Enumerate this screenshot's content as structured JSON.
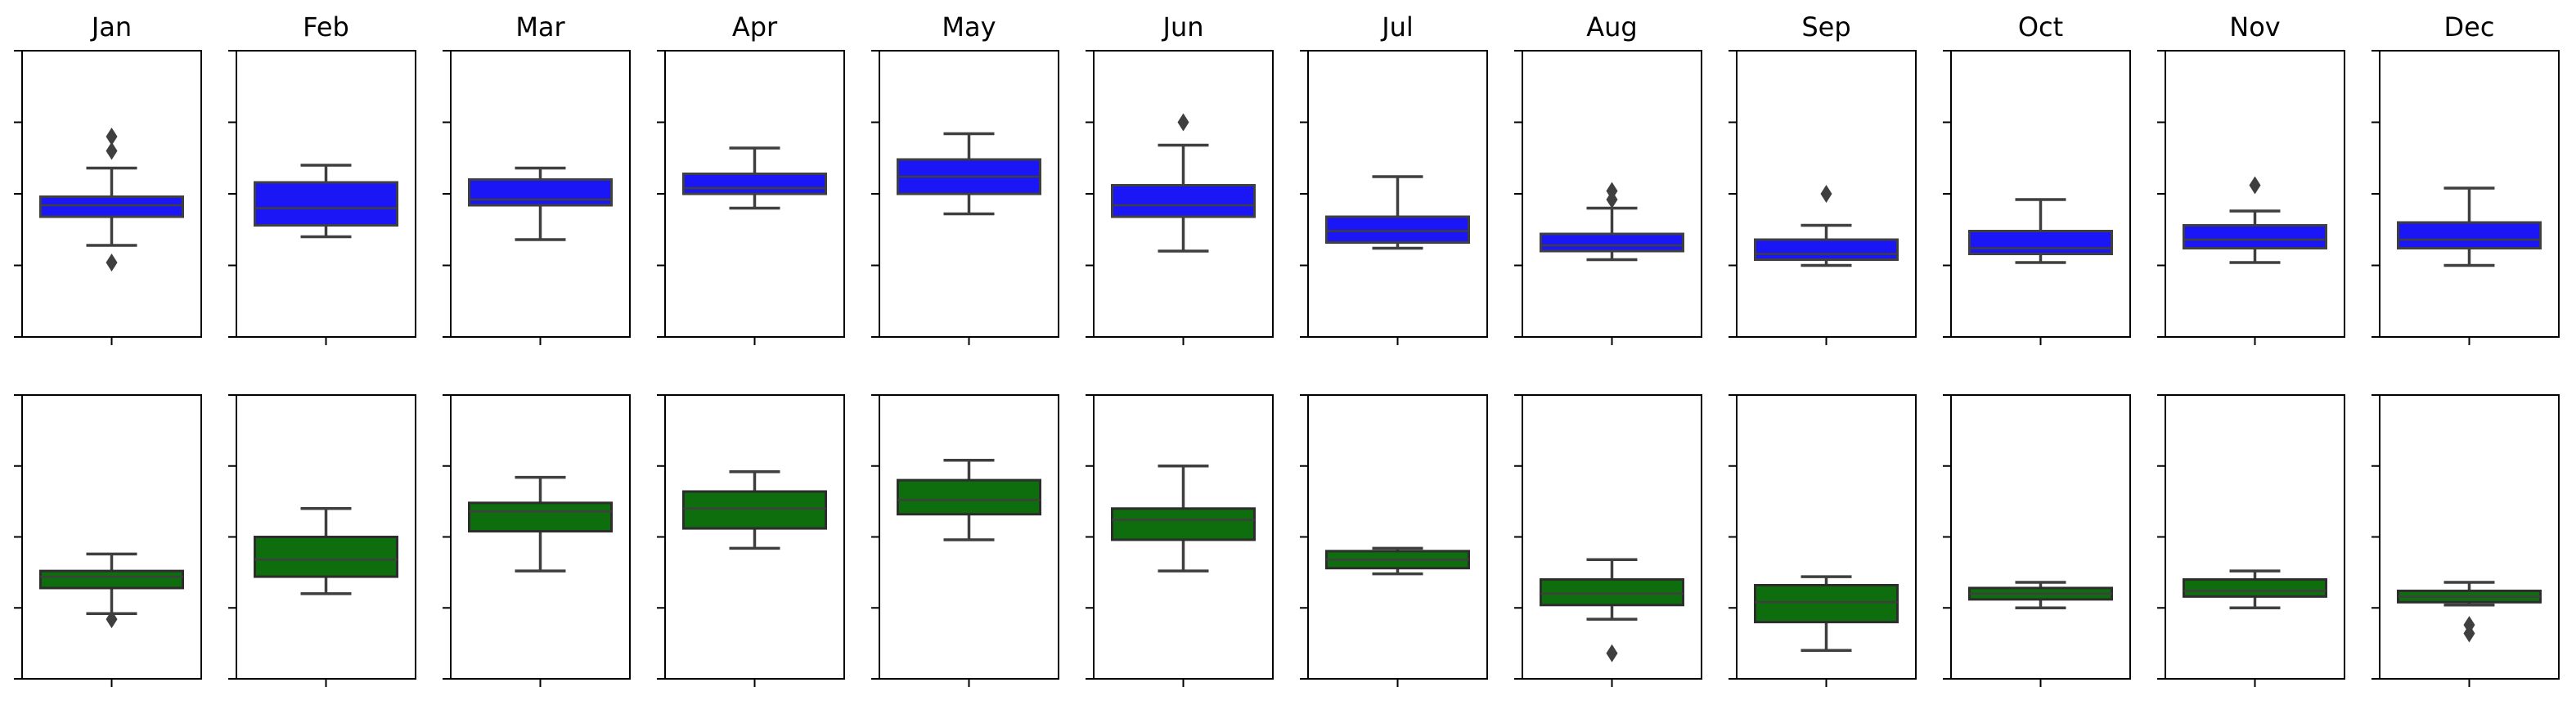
{
  "chart_data": [
    {
      "type": "box",
      "row": "top",
      "color": "#1a16f5",
      "ylim": [
        0,
        100
      ],
      "grid": false,
      "titles": [
        "Jan",
        "Feb",
        "Mar",
        "Apr",
        "May",
        "Jun",
        "Jul",
        "Aug",
        "Sep",
        "Oct",
        "Nov",
        "Dec"
      ],
      "boxes": [
        {
          "category": "Jan",
          "whisker_low": 32,
          "q1": 42,
          "median": 46,
          "q3": 49,
          "whisker_high": 59,
          "outliers": [
            26,
            65,
            70
          ]
        },
        {
          "category": "Feb",
          "whisker_low": 35,
          "q1": 39,
          "median": 45,
          "q3": 54,
          "whisker_high": 60,
          "outliers": []
        },
        {
          "category": "Mar",
          "whisker_low": 34,
          "q1": 46,
          "median": 48,
          "q3": 55,
          "whisker_high": 59,
          "outliers": []
        },
        {
          "category": "Apr",
          "whisker_low": 45,
          "q1": 50,
          "median": 52,
          "q3": 57,
          "whisker_high": 66,
          "outliers": []
        },
        {
          "category": "May",
          "whisker_low": 43,
          "q1": 50,
          "median": 56,
          "q3": 62,
          "whisker_high": 71,
          "outliers": []
        },
        {
          "category": "Jun",
          "whisker_low": 30,
          "q1": 42,
          "median": 46,
          "q3": 53,
          "whisker_high": 67,
          "outliers": [
            75
          ]
        },
        {
          "category": "Jul",
          "whisker_low": 31,
          "q1": 33,
          "median": 37,
          "q3": 42,
          "whisker_high": 56,
          "outliers": []
        },
        {
          "category": "Aug",
          "whisker_low": 27,
          "q1": 30,
          "median": 32,
          "q3": 36,
          "whisker_high": 45,
          "outliers": [
            48,
            51
          ]
        },
        {
          "category": "Sep",
          "whisker_low": 25,
          "q1": 27,
          "median": 29,
          "q3": 34,
          "whisker_high": 39,
          "outliers": [
            50
          ]
        },
        {
          "category": "Oct",
          "whisker_low": 26,
          "q1": 29,
          "median": 31,
          "q3": 37,
          "whisker_high": 48,
          "outliers": []
        },
        {
          "category": "Nov",
          "whisker_low": 26,
          "q1": 31,
          "median": 34,
          "q3": 39,
          "whisker_high": 44,
          "outliers": [
            53
          ]
        },
        {
          "category": "Dec",
          "whisker_low": 25,
          "q1": 31,
          "median": 34,
          "q3": 40,
          "whisker_high": 52,
          "outliers": []
        }
      ]
    },
    {
      "type": "box",
      "row": "bottom",
      "color": "#0e6e0e",
      "ylim": [
        0,
        100
      ],
      "grid": false,
      "boxes": [
        {
          "category": "Jan",
          "whisker_low": 23,
          "q1": 32,
          "median": 36,
          "q3": 38,
          "whisker_high": 44,
          "outliers": [
            21
          ]
        },
        {
          "category": "Feb",
          "whisker_low": 30,
          "q1": 36,
          "median": 42,
          "q3": 50,
          "whisker_high": 60,
          "outliers": []
        },
        {
          "category": "Mar",
          "whisker_low": 38,
          "q1": 52,
          "median": 59,
          "q3": 62,
          "whisker_high": 71,
          "outliers": []
        },
        {
          "category": "Apr",
          "whisker_low": 46,
          "q1": 53,
          "median": 60,
          "q3": 66,
          "whisker_high": 73,
          "outliers": []
        },
        {
          "category": "May",
          "whisker_low": 49,
          "q1": 58,
          "median": 63,
          "q3": 70,
          "whisker_high": 77,
          "outliers": []
        },
        {
          "category": "Jun",
          "whisker_low": 38,
          "q1": 49,
          "median": 56,
          "q3": 60,
          "whisker_high": 75,
          "outliers": []
        },
        {
          "category": "Jul",
          "whisker_low": 37,
          "q1": 39,
          "median": 42,
          "q3": 45,
          "whisker_high": 46,
          "outliers": []
        },
        {
          "category": "Aug",
          "whisker_low": 21,
          "q1": 26,
          "median": 30,
          "q3": 35,
          "whisker_high": 42,
          "outliers": [
            9
          ]
        },
        {
          "category": "Sep",
          "whisker_low": 10,
          "q1": 20,
          "median": 27,
          "q3": 33,
          "whisker_high": 36,
          "outliers": []
        },
        {
          "category": "Oct",
          "whisker_low": 25,
          "q1": 28,
          "median": 30,
          "q3": 32,
          "whisker_high": 34,
          "outliers": []
        },
        {
          "category": "Nov",
          "whisker_low": 25,
          "q1": 29,
          "median": 31,
          "q3": 35,
          "whisker_high": 38,
          "outliers": []
        },
        {
          "category": "Dec",
          "whisker_low": 26,
          "q1": 27,
          "median": 29,
          "q3": 31,
          "whisker_high": 34,
          "outliers": [
            16,
            19
          ]
        }
      ]
    }
  ]
}
